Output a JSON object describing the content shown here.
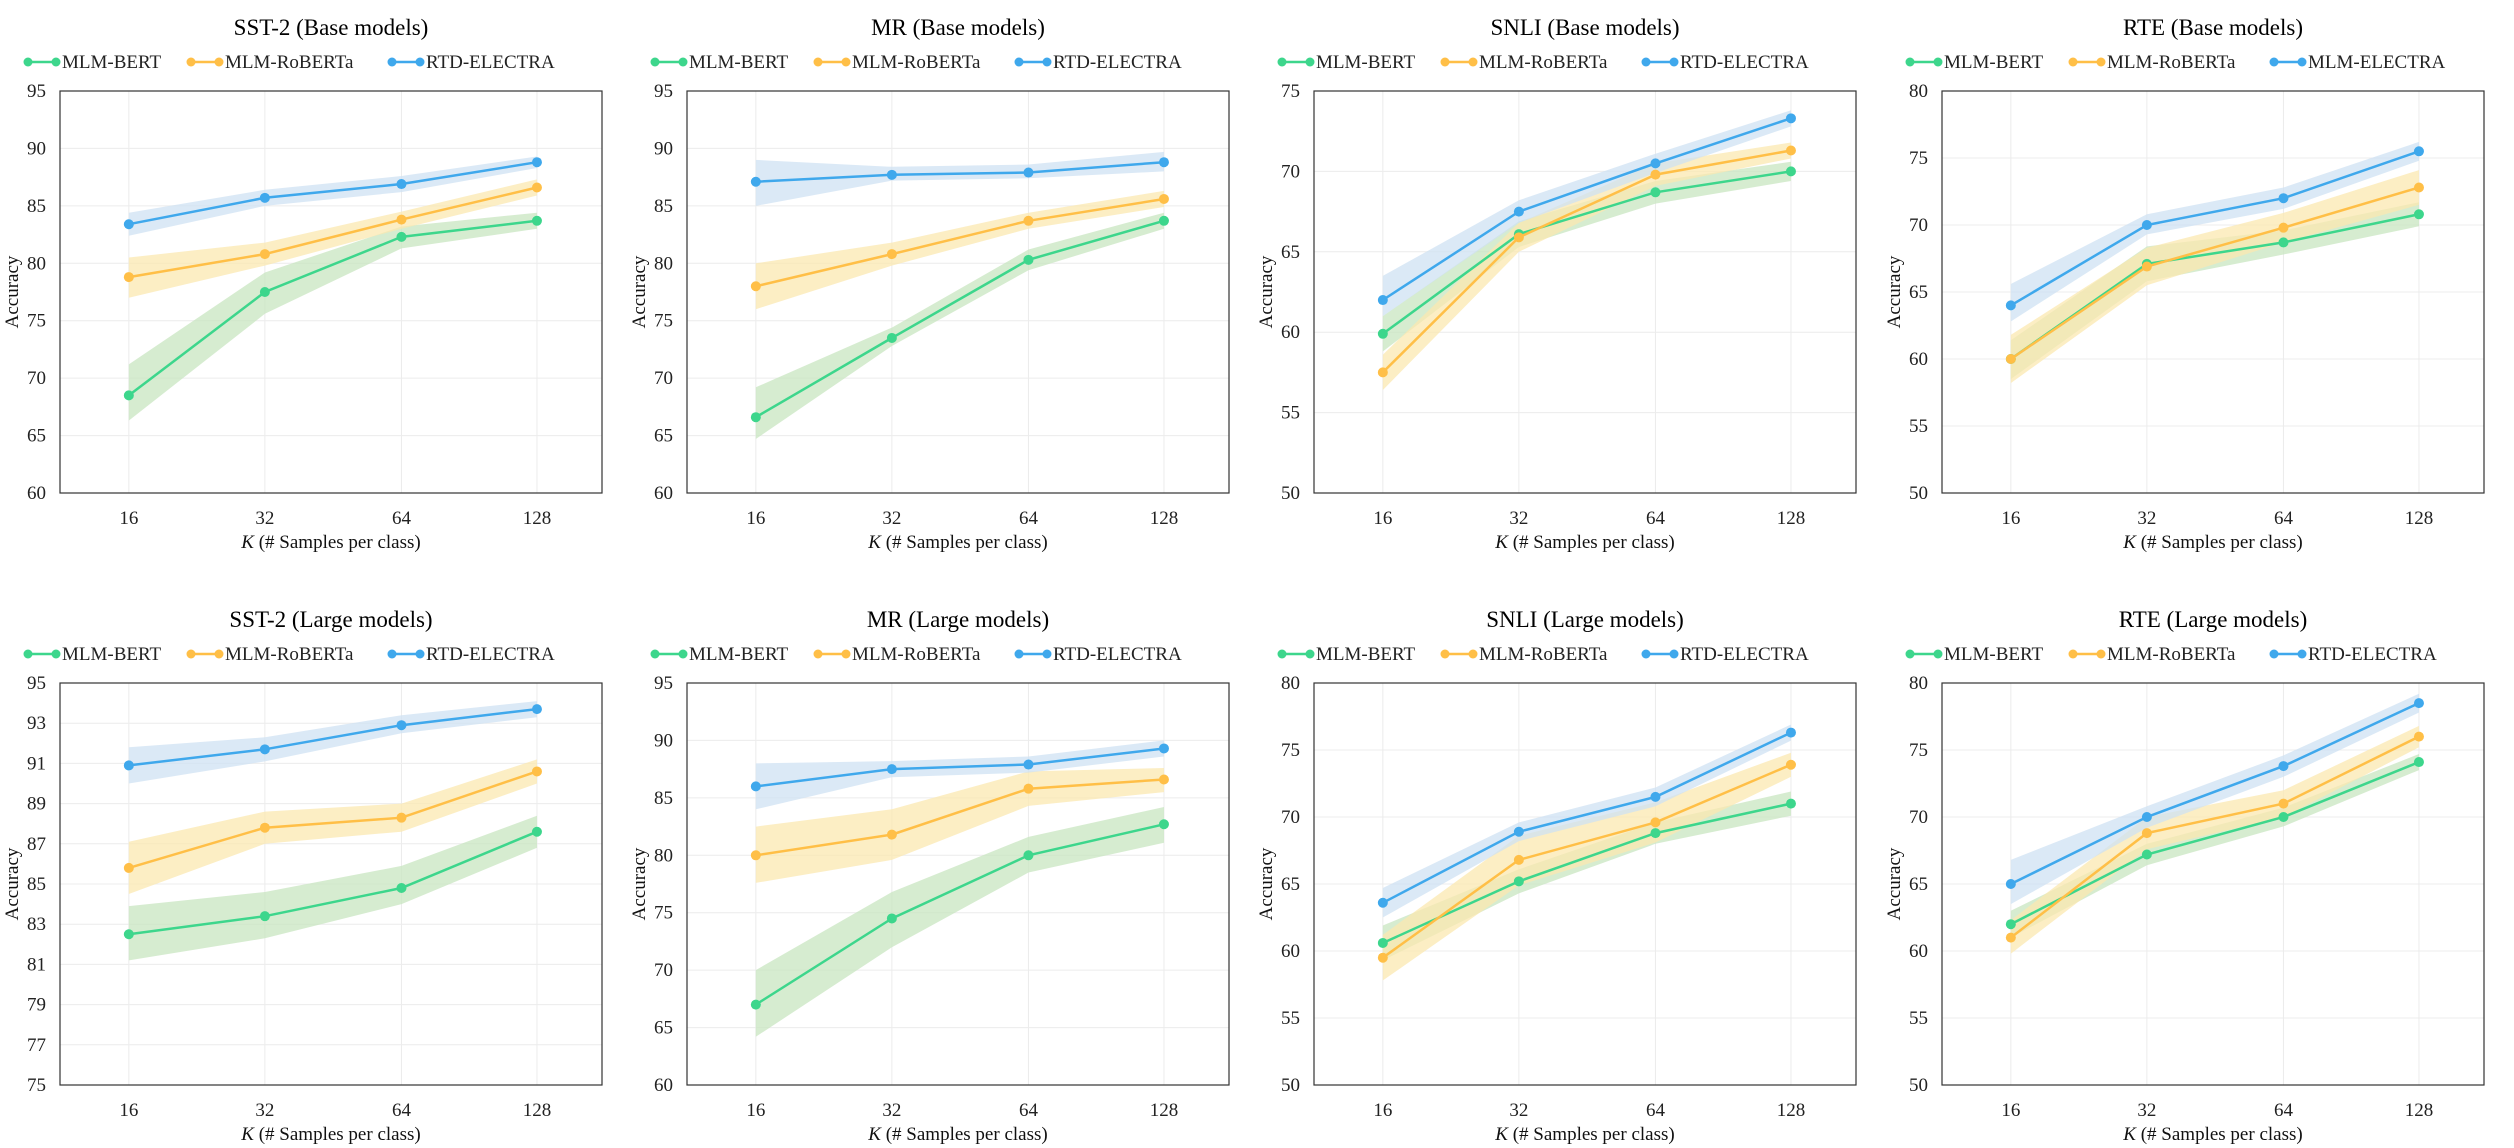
{
  "colors": {
    "bert": "#3dd68c",
    "bert_band": "#c8e6c0",
    "roberta": "#ffbf47",
    "roberta_band": "#fbe8b0",
    "electra": "#3fa8ec",
    "electra_band": "#cfe2f3"
  },
  "chart_data": [
    {
      "type": "line",
      "title": "SST-2 (Base models)",
      "xlabel": "K (# Samples per class)",
      "ylabel": "Accuracy",
      "categories": [
        "16",
        "32",
        "64",
        "128"
      ],
      "ylim": [
        60,
        95
      ],
      "yticks": [
        60,
        65,
        70,
        75,
        80,
        85,
        90,
        95
      ],
      "grid": true,
      "legend": "top",
      "series": [
        {
          "name": "MLM-BERT",
          "color_key": "bert",
          "values": [
            68.5,
            77.5,
            82.3,
            83.7
          ],
          "lower": [
            66.3,
            75.6,
            81.3,
            83.0
          ],
          "upper": [
            71.2,
            79.2,
            83.2,
            84.4
          ]
        },
        {
          "name": "MLM-RoBERTa",
          "color_key": "roberta",
          "values": [
            78.8,
            80.8,
            83.8,
            86.6
          ],
          "lower": [
            77.0,
            79.8,
            83.0,
            85.9
          ],
          "upper": [
            80.5,
            81.8,
            84.5,
            87.3
          ]
        },
        {
          "name": "RTD-ELECTRA",
          "color_key": "electra",
          "values": [
            83.4,
            85.7,
            86.9,
            88.8
          ],
          "lower": [
            82.4,
            85.0,
            86.2,
            88.3
          ],
          "upper": [
            84.4,
            86.4,
            87.6,
            89.3
          ]
        }
      ]
    },
    {
      "type": "line",
      "title": "MR (Base models)",
      "xlabel": "K (# Samples per class)",
      "ylabel": "Accuracy",
      "categories": [
        "16",
        "32",
        "64",
        "128"
      ],
      "ylim": [
        60,
        95
      ],
      "yticks": [
        60,
        65,
        70,
        75,
        80,
        85,
        90,
        95
      ],
      "grid": true,
      "legend": "top",
      "series": [
        {
          "name": "MLM-BERT",
          "color_key": "bert",
          "values": [
            66.6,
            73.5,
            80.3,
            83.7
          ],
          "lower": [
            64.7,
            72.8,
            79.4,
            83.0
          ],
          "upper": [
            69.2,
            74.4,
            81.2,
            84.4
          ]
        },
        {
          "name": "MLM-RoBERTa",
          "color_key": "roberta",
          "values": [
            78.0,
            80.8,
            83.7,
            85.6
          ],
          "lower": [
            76.0,
            79.8,
            83.0,
            84.9
          ],
          "upper": [
            80.0,
            81.8,
            84.4,
            86.3
          ]
        },
        {
          "name": "RTD-ELECTRA",
          "color_key": "electra",
          "values": [
            87.1,
            87.7,
            87.9,
            88.8
          ],
          "lower": [
            85.0,
            87.2,
            87.4,
            88.0
          ],
          "upper": [
            89.0,
            88.4,
            88.6,
            89.7
          ]
        }
      ]
    },
    {
      "type": "line",
      "title": "SNLI (Base models)",
      "xlabel": "K (# Samples per class)",
      "ylabel": "Accuracy",
      "categories": [
        "16",
        "32",
        "64",
        "128"
      ],
      "ylim": [
        50,
        75
      ],
      "yticks": [
        50,
        55,
        60,
        65,
        70,
        75
      ],
      "grid": true,
      "legend": "top",
      "series": [
        {
          "name": "MLM-BERT",
          "color_key": "bert",
          "values": [
            59.9,
            66.1,
            68.7,
            70.0
          ],
          "lower": [
            58.8,
            65.3,
            68.0,
            69.4
          ],
          "upper": [
            61.0,
            66.9,
            69.4,
            70.6
          ]
        },
        {
          "name": "MLM-RoBERTa",
          "color_key": "roberta",
          "values": [
            57.5,
            65.9,
            69.8,
            71.3
          ],
          "lower": [
            56.4,
            65.0,
            69.1,
            70.8
          ],
          "upper": [
            58.6,
            66.8,
            70.5,
            71.8
          ]
        },
        {
          "name": "RTD-ELECTRA",
          "color_key": "electra",
          "values": [
            62.0,
            67.5,
            70.5,
            73.3
          ],
          "lower": [
            61.0,
            66.8,
            69.9,
            72.8
          ],
          "upper": [
            63.5,
            68.2,
            71.1,
            73.8
          ]
        }
      ]
    },
    {
      "type": "line",
      "title": "RTE (Base models)",
      "xlabel": "K (# Samples per class)",
      "ylabel": "Accuracy",
      "categories": [
        "16",
        "32",
        "64",
        "128"
      ],
      "ylim": [
        50,
        80
      ],
      "yticks": [
        50,
        55,
        60,
        65,
        70,
        75,
        80
      ],
      "grid": true,
      "legend": "top",
      "series": [
        {
          "name": "MLM-BERT",
          "color_key": "bert",
          "values": [
            60.0,
            67.1,
            68.7,
            70.8
          ],
          "lower": [
            58.5,
            65.8,
            67.8,
            69.9
          ],
          "upper": [
            61.4,
            68.4,
            69.6,
            71.7
          ]
        },
        {
          "name": "MLM-RoBERTa",
          "color_key": "roberta",
          "values": [
            60.0,
            66.9,
            69.8,
            72.8
          ],
          "lower": [
            58.2,
            65.5,
            68.7,
            71.5
          ],
          "upper": [
            61.8,
            68.3,
            70.9,
            74.1
          ]
        },
        {
          "name": "MLM-ELECTRA",
          "color_key": "electra",
          "values": [
            64.0,
            70.0,
            72.0,
            75.5
          ],
          "lower": [
            62.8,
            69.3,
            71.2,
            74.8
          ],
          "upper": [
            65.6,
            70.8,
            72.8,
            76.2
          ]
        }
      ]
    },
    {
      "type": "line",
      "title": "SST-2 (Large models)",
      "xlabel": "K (# Samples per class)",
      "ylabel": "Accuracy",
      "categories": [
        "16",
        "32",
        "64",
        "128"
      ],
      "ylim": [
        75,
        95
      ],
      "yticks": [
        75,
        77,
        79,
        81,
        83,
        85,
        87,
        89,
        91,
        93,
        95
      ],
      "grid": true,
      "legend": "top",
      "series": [
        {
          "name": "MLM-BERT",
          "color_key": "bert",
          "values": [
            82.5,
            83.4,
            84.8,
            87.6
          ],
          "lower": [
            81.2,
            82.3,
            84.0,
            86.8
          ],
          "upper": [
            83.9,
            84.6,
            85.9,
            88.4
          ]
        },
        {
          "name": "MLM-RoBERTa",
          "color_key": "roberta",
          "values": [
            85.8,
            87.8,
            88.3,
            90.6
          ],
          "lower": [
            84.5,
            87.0,
            87.6,
            90.0
          ],
          "upper": [
            87.1,
            88.6,
            89.0,
            91.2
          ]
        },
        {
          "name": "RTD-ELECTRA",
          "color_key": "electra",
          "values": [
            90.9,
            91.7,
            92.9,
            93.7
          ],
          "lower": [
            90.0,
            91.1,
            92.5,
            93.3
          ],
          "upper": [
            91.8,
            92.3,
            93.4,
            94.1
          ]
        }
      ]
    },
    {
      "type": "line",
      "title": "MR (Large models)",
      "xlabel": "K (# Samples per class)",
      "ylabel": "Accuracy",
      "categories": [
        "16",
        "32",
        "64",
        "128"
      ],
      "ylim": [
        60,
        95
      ],
      "yticks": [
        60,
        65,
        70,
        75,
        80,
        85,
        90,
        95
      ],
      "grid": true,
      "legend": "top",
      "series": [
        {
          "name": "MLM-BERT",
          "color_key": "bert",
          "values": [
            67.0,
            74.5,
            80.0,
            82.7
          ],
          "lower": [
            64.2,
            72.0,
            78.5,
            81.1
          ],
          "upper": [
            70.0,
            76.8,
            81.6,
            84.2
          ]
        },
        {
          "name": "MLM-RoBERTa",
          "color_key": "roberta",
          "values": [
            80.0,
            81.8,
            85.8,
            86.6
          ],
          "lower": [
            77.6,
            79.6,
            84.3,
            85.5
          ],
          "upper": [
            82.5,
            84.0,
            87.3,
            87.6
          ]
        },
        {
          "name": "RTD-ELECTRA",
          "color_key": "electra",
          "values": [
            86.0,
            87.5,
            87.9,
            89.3
          ],
          "lower": [
            84.0,
            86.8,
            87.2,
            88.6
          ],
          "upper": [
            88.0,
            88.2,
            88.6,
            90.0
          ]
        }
      ]
    },
    {
      "type": "line",
      "title": "SNLI (Large models)",
      "xlabel": "K (# Samples per class)",
      "ylabel": "Accuracy",
      "categories": [
        "16",
        "32",
        "64",
        "128"
      ],
      "ylim": [
        50,
        80
      ],
      "yticks": [
        50,
        55,
        60,
        65,
        70,
        75,
        80
      ],
      "grid": true,
      "legend": "top",
      "series": [
        {
          "name": "MLM-BERT",
          "color_key": "bert",
          "values": [
            60.6,
            65.2,
            68.8,
            71.0
          ],
          "lower": [
            59.3,
            64.3,
            68.0,
            70.1
          ],
          "upper": [
            61.9,
            66.1,
            69.6,
            71.9
          ]
        },
        {
          "name": "MLM-RoBERTa",
          "color_key": "roberta",
          "values": [
            59.5,
            66.8,
            69.6,
            73.9
          ],
          "lower": [
            57.8,
            64.9,
            68.1,
            73.0
          ],
          "upper": [
            61.2,
            68.6,
            71.1,
            74.8
          ]
        },
        {
          "name": "RTD-ELECTRA",
          "color_key": "electra",
          "values": [
            63.6,
            68.9,
            71.5,
            76.3
          ],
          "lower": [
            62.5,
            68.2,
            70.8,
            75.7
          ],
          "upper": [
            64.7,
            69.6,
            72.2,
            76.9
          ]
        }
      ]
    },
    {
      "type": "line",
      "title": "RTE (Large models)",
      "xlabel": "K (# Samples per class)",
      "ylabel": "Accuracy",
      "categories": [
        "16",
        "32",
        "64",
        "128"
      ],
      "ylim": [
        50,
        80
      ],
      "yticks": [
        50,
        55,
        60,
        65,
        70,
        75,
        80
      ],
      "grid": true,
      "legend": "top",
      "series": [
        {
          "name": "MLM-BERT",
          "color_key": "bert",
          "values": [
            62.0,
            67.2,
            70.0,
            74.1
          ],
          "lower": [
            61.0,
            66.4,
            69.3,
            73.5
          ],
          "upper": [
            63.0,
            68.0,
            70.7,
            74.7
          ]
        },
        {
          "name": "MLM-RoBERTa",
          "color_key": "roberta",
          "values": [
            61.0,
            68.8,
            71.0,
            76.0
          ],
          "lower": [
            59.8,
            67.6,
            70.0,
            75.2
          ],
          "upper": [
            62.3,
            70.0,
            72.0,
            76.8
          ]
        },
        {
          "name": "RTD-ELECTRA",
          "color_key": "electra",
          "values": [
            65.0,
            70.0,
            73.8,
            78.5
          ],
          "lower": [
            63.5,
            69.2,
            73.0,
            77.8
          ],
          "upper": [
            66.8,
            70.8,
            74.6,
            79.2
          ]
        }
      ]
    }
  ]
}
